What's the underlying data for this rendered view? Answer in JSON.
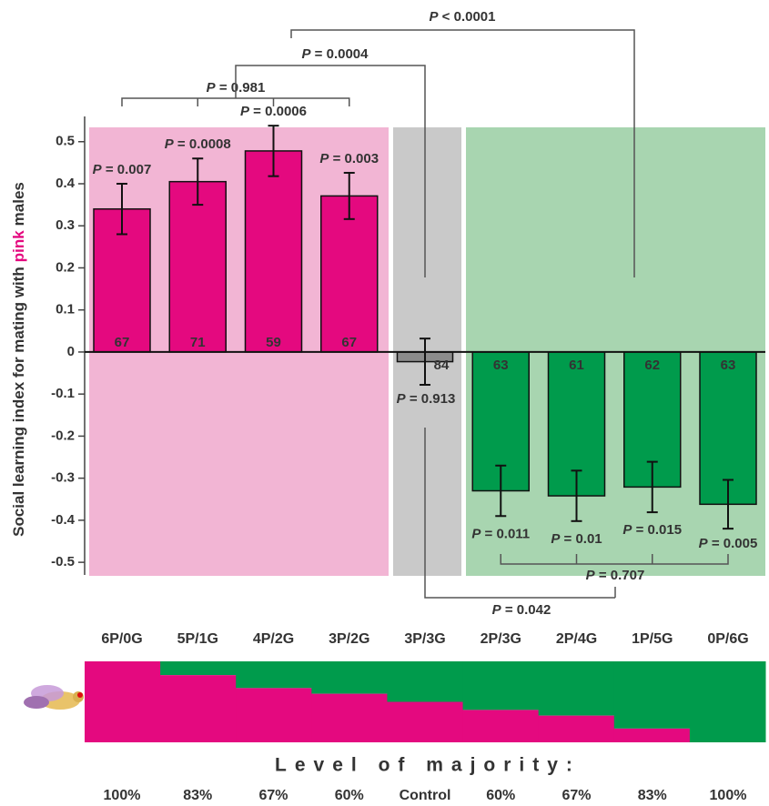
{
  "chart_data": {
    "type": "bar",
    "ylabel_parts": [
      "Social learning index for mating with",
      "pink",
      "males"
    ],
    "categories": [
      "6P/0G",
      "5P/1G",
      "4P/2G",
      "3P/2G",
      "3P/3G",
      "2P/3G",
      "2P/4G",
      "1P/5G",
      "0P/6G"
    ],
    "values": [
      0.34,
      0.405,
      0.478,
      0.371,
      -0.023,
      -0.33,
      -0.342,
      -0.321,
      -0.362
    ],
    "errors": [
      0.06,
      0.055,
      0.06,
      0.055,
      0.055,
      0.06,
      0.06,
      0.06,
      0.058
    ],
    "colors": [
      "#e4097f",
      "#e4097f",
      "#e4097f",
      "#e4097f",
      "#8c8c8c",
      "#009b4c",
      "#009b4c",
      "#009b4c",
      "#009b4c"
    ],
    "counts": [
      67,
      71,
      59,
      67,
      84,
      63,
      61,
      62,
      63
    ],
    "p_labels": [
      "P = 0.007",
      "P = 0.0008",
      "P = 0.0006",
      "P = 0.003",
      "P = 0.913",
      "P = 0.011",
      "P = 0.01",
      "P = 0.015",
      "P = 0.005"
    ],
    "comparison_labels": [
      "P = 0.981",
      "P = 0.0004",
      "P < 0.0001",
      "P = 0.707",
      "P = 0.042"
    ],
    "ylim": [
      -0.53,
      0.56
    ],
    "yticks": [
      0.5,
      0.4,
      0.3,
      0.2,
      0.1,
      0,
      -0.1,
      -0.2,
      -0.3,
      -0.4,
      -0.5
    ],
    "majority": {
      "title": "Level of majority:",
      "labels": [
        "100%",
        "83%",
        "67%",
        "60%",
        "Control",
        "60%",
        "67%",
        "83%",
        "100%"
      ],
      "pink_share": [
        100,
        83,
        67,
        60,
        50,
        40,
        33,
        17,
        0
      ]
    }
  }
}
